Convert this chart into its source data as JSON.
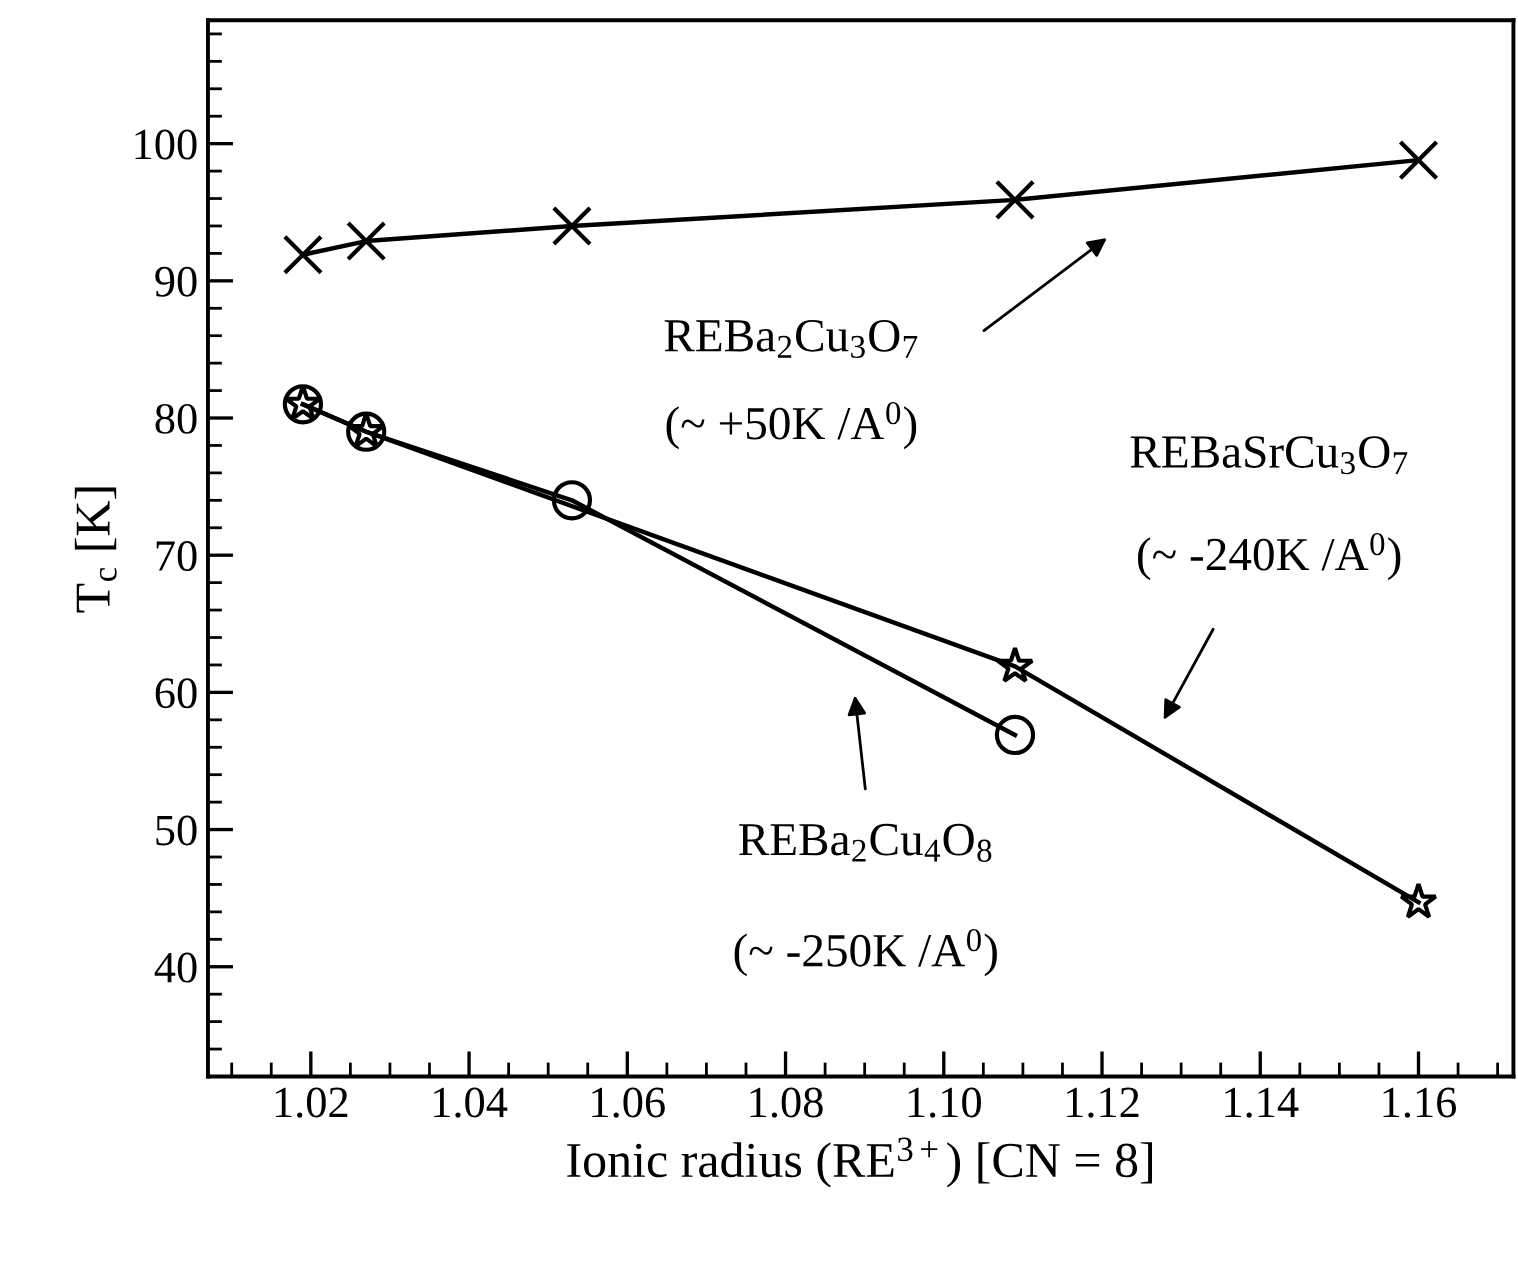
{
  "chart_data": {
    "type": "line",
    "xlabel": "Ionic radius (RE$^{3+}$) [CN = 8]",
    "ylabel": "T$_{c}$ [K]",
    "xlim": [
      1.007,
      1.172
    ],
    "ylim": [
      32,
      109
    ],
    "xticks": [
      1.02,
      1.04,
      1.06,
      1.08,
      {
        "value": 1.1,
        "label": "1.10"
      },
      1.12,
      1.14,
      1.16
    ],
    "yticks": [
      40,
      50,
      60,
      70,
      80,
      90,
      100
    ],
    "grid": false,
    "legend": false,
    "line_style": "solid",
    "series": [
      {
        "color": "#000000",
        "marker": "cross",
        "x": [
          1.019,
          1.027,
          1.053,
          1.109,
          1.16
        ],
        "values": [
          91.9,
          92.9,
          94.0,
          95.9,
          98.8
        ]
      },
      {
        "color": "#000000",
        "marker": "star",
        "x": [
          1.019,
          1.027,
          1.109,
          1.16
        ],
        "values": [
          81.0,
          79.0,
          61.9,
          44.7
        ]
      },
      {
        "color": "#000000",
        "marker": "circle",
        "x": [
          1.019,
          1.027,
          1.053,
          1.109
        ],
        "values": [
          81.0,
          79.0,
          74.0,
          56.9
        ]
      }
    ],
    "annotations": [
      "REBa$_{2}$Cu$_{3}$O$_{7}$",
      "(~ +50K /A$^{0}$)",
      "REBaSrCu$_{3}$O$_{7}$",
      "(~ -240K /A$^{0}$)",
      "REBa$_{2}$Cu$_{4}$O$_{8}$",
      "(~ -250K /A$^{0}$)"
    ]
  }
}
